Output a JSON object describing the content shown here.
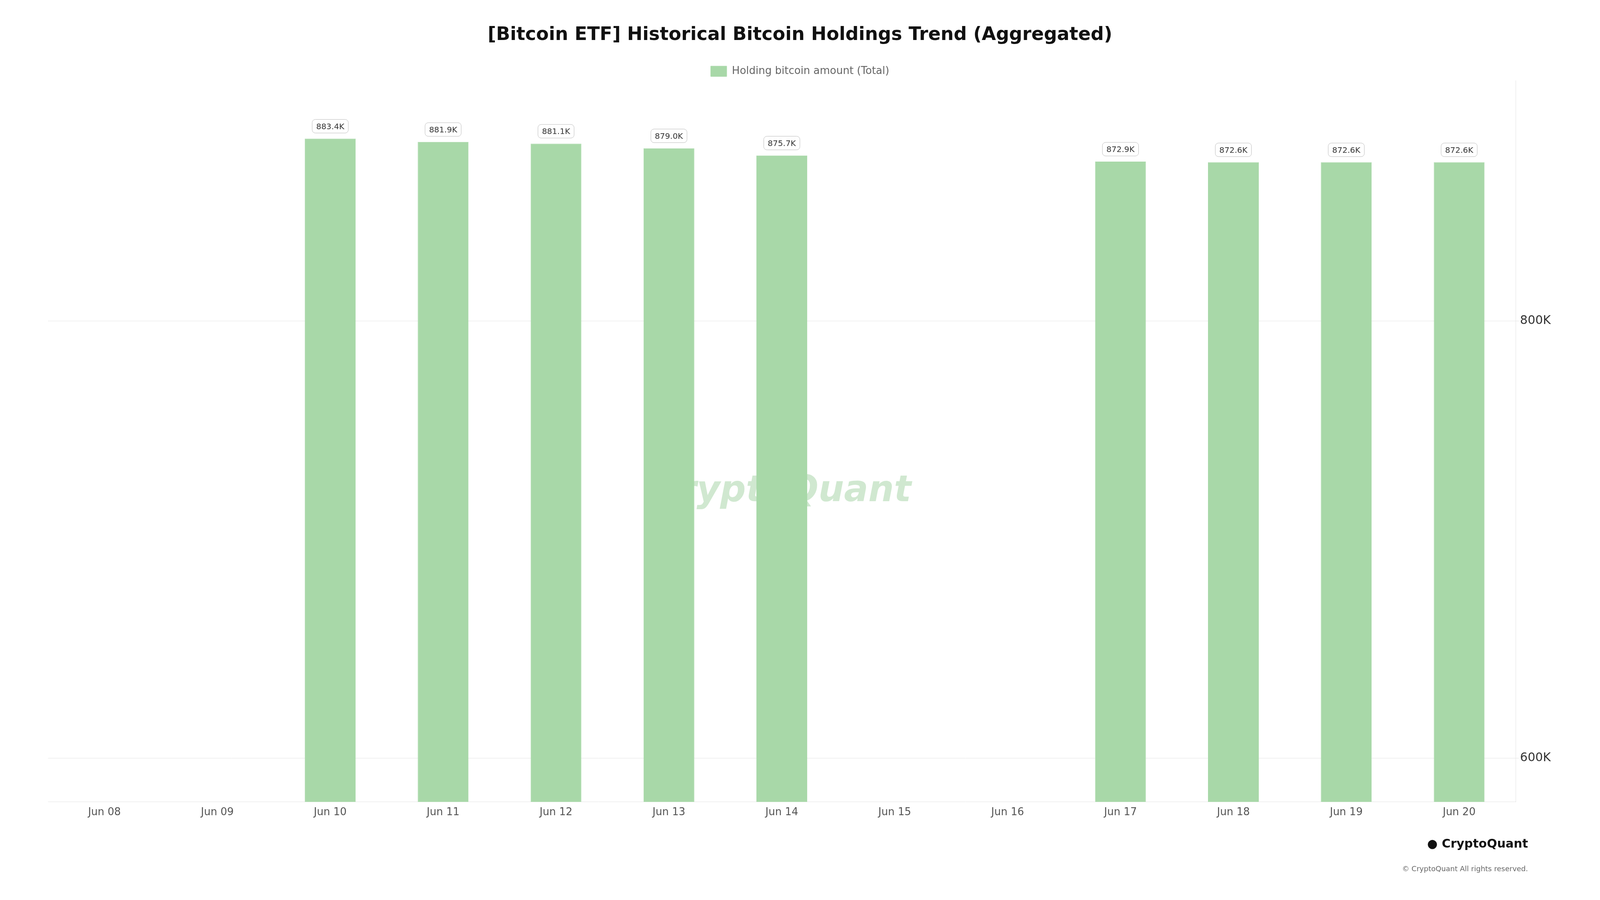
{
  "chart_data": {
    "type": "bar",
    "title": "[Bitcoin ETF] Historical Bitcoin Holdings Trend (Aggregated)",
    "categories": [
      "Jun 08",
      "Jun 09",
      "Jun 10",
      "Jun 11",
      "Jun 12",
      "Jun 13",
      "Jun 14",
      "Jun 15",
      "Jun 16",
      "Jun 17",
      "Jun 18",
      "Jun 19",
      "Jun 20"
    ],
    "series": [
      {
        "name": "Holding bitcoin amount (Total)",
        "color": "#a8d8a8",
        "values": [
          null,
          null,
          883400,
          881900,
          881100,
          879000,
          875700,
          null,
          null,
          872900,
          872600,
          872600,
          872600
        ],
        "value_labels": [
          null,
          null,
          "883.4K",
          "881.9K",
          "881.1K",
          "879.0K",
          "875.7K",
          null,
          null,
          "872.9K",
          "872.6K",
          "872.6K",
          "872.6K"
        ]
      }
    ],
    "ylim": [
      580000,
      910000
    ],
    "yticks": [
      {
        "value": 600000,
        "label": "600K"
      },
      {
        "value": 800000,
        "label": "800K"
      }
    ],
    "grid": true,
    "legend": "top",
    "data_labels": true,
    "annotations": [
      "CryptoQuant",
      "● CryptoQuant",
      "© CryptoQuant All rights reserved."
    ]
  }
}
